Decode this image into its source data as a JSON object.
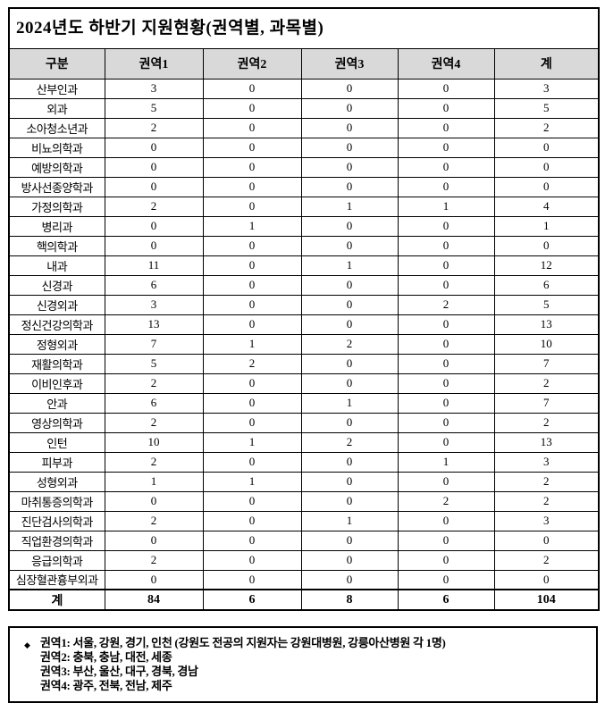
{
  "title": "2024년도 하반기 지원현황(권역별, 과목별)",
  "table": {
    "columns": [
      "구분",
      "권역1",
      "권역2",
      "권역3",
      "권역4",
      "계"
    ],
    "rows": [
      {
        "label": "산부인과",
        "values": [
          3,
          0,
          0,
          0,
          3
        ]
      },
      {
        "label": "외과",
        "values": [
          5,
          0,
          0,
          0,
          5
        ]
      },
      {
        "label": "소아청소년과",
        "values": [
          2,
          0,
          0,
          0,
          2
        ]
      },
      {
        "label": "비뇨의학과",
        "values": [
          0,
          0,
          0,
          0,
          0
        ]
      },
      {
        "label": "예방의학과",
        "values": [
          0,
          0,
          0,
          0,
          0
        ]
      },
      {
        "label": "방사선종양학과",
        "values": [
          0,
          0,
          0,
          0,
          0
        ]
      },
      {
        "label": "가정의학과",
        "values": [
          2,
          0,
          1,
          1,
          4
        ]
      },
      {
        "label": "병리과",
        "values": [
          0,
          1,
          0,
          0,
          1
        ]
      },
      {
        "label": "핵의학과",
        "values": [
          0,
          0,
          0,
          0,
          0
        ]
      },
      {
        "label": "내과",
        "values": [
          11,
          0,
          1,
          0,
          12
        ]
      },
      {
        "label": "신경과",
        "values": [
          6,
          0,
          0,
          0,
          6
        ]
      },
      {
        "label": "신경외과",
        "values": [
          3,
          0,
          0,
          2,
          5
        ]
      },
      {
        "label": "정신건강의학과",
        "values": [
          13,
          0,
          0,
          0,
          13
        ]
      },
      {
        "label": "정형외과",
        "values": [
          7,
          1,
          2,
          0,
          10
        ]
      },
      {
        "label": "재활의학과",
        "values": [
          5,
          2,
          0,
          0,
          7
        ]
      },
      {
        "label": "이비인후과",
        "values": [
          2,
          0,
          0,
          0,
          2
        ]
      },
      {
        "label": "안과",
        "values": [
          6,
          0,
          1,
          0,
          7
        ]
      },
      {
        "label": "영상의학과",
        "values": [
          2,
          0,
          0,
          0,
          2
        ]
      },
      {
        "label": "인턴",
        "values": [
          10,
          1,
          2,
          0,
          13
        ]
      },
      {
        "label": "피부과",
        "values": [
          2,
          0,
          0,
          1,
          3
        ]
      },
      {
        "label": "성형외과",
        "values": [
          1,
          1,
          0,
          0,
          2
        ]
      },
      {
        "label": "마취통증의학과",
        "values": [
          0,
          0,
          0,
          2,
          2
        ]
      },
      {
        "label": "진단검사의학과",
        "values": [
          2,
          0,
          1,
          0,
          3
        ]
      },
      {
        "label": "직업환경의학과",
        "values": [
          0,
          0,
          0,
          0,
          0
        ]
      },
      {
        "label": "응급의학과",
        "values": [
          2,
          0,
          0,
          0,
          2
        ]
      },
      {
        "label": "심장혈관흉부외과",
        "values": [
          0,
          0,
          0,
          0,
          0
        ]
      }
    ],
    "total_row": {
      "label": "계",
      "values": [
        84,
        6,
        8,
        6,
        104
      ]
    }
  },
  "footnotes": {
    "bullet": "◆",
    "lines": [
      "권역1: 서울, 강원, 경기, 인천 (강원도 전공의 지원자는 강원대병원, 강릉아산병원 각 1명)",
      "권역2: 충북, 충남, 대전, 세종",
      "권역3: 부산, 울산, 대구, 경북, 경남",
      "권역4: 광주, 전북, 전남, 제주"
    ]
  },
  "colors": {
    "header_bg": "#d9d9d9",
    "border": "#000000",
    "text": "#000000",
    "page_bg": "#ffffff"
  }
}
